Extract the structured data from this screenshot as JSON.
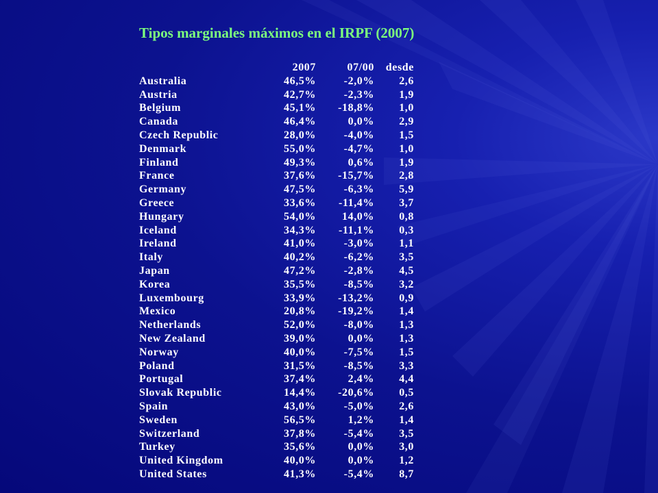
{
  "title": "Tipos marginales máximos en el IRPF (2007)",
  "colors": {
    "title": "#7dff7d",
    "text": "#ffffff",
    "background": "#0c128f"
  },
  "table": {
    "headers": [
      "",
      "2007",
      "07/00",
      "desde"
    ],
    "rows": [
      [
        "Australia",
        "46,5%",
        "-2,0%",
        "2,6"
      ],
      [
        "Austria",
        "42,7%",
        "-2,3%",
        "1,9"
      ],
      [
        "Belgium",
        "45,1%",
        "-18,8%",
        "1,0"
      ],
      [
        "Canada",
        "46,4%",
        "0,0%",
        "2,9"
      ],
      [
        "Czech Republic",
        "28,0%",
        "-4,0%",
        "1,5"
      ],
      [
        "Denmark",
        "55,0%",
        "-4,7%",
        "1,0"
      ],
      [
        "Finland",
        "49,3%",
        "0,6%",
        "1,9"
      ],
      [
        "France",
        "37,6%",
        "-15,7%",
        "2,8"
      ],
      [
        "Germany",
        "47,5%",
        "-6,3%",
        "5,9"
      ],
      [
        "Greece",
        "33,6%",
        "-11,4%",
        "3,7"
      ],
      [
        "Hungary",
        "54,0%",
        "14,0%",
        "0,8"
      ],
      [
        "Iceland",
        "34,3%",
        "-11,1%",
        "0,3"
      ],
      [
        "Ireland",
        "41,0%",
        "-3,0%",
        "1,1"
      ],
      [
        "Italy",
        "40,2%",
        "-6,2%",
        "3,5"
      ],
      [
        "Japan",
        "47,2%",
        "-2,8%",
        "4,5"
      ],
      [
        "Korea",
        "35,5%",
        "-8,5%",
        "3,2"
      ],
      [
        "Luxembourg",
        "33,9%",
        "-13,2%",
        "0,9"
      ],
      [
        "Mexico",
        "20,8%",
        "-19,2%",
        "1,4"
      ],
      [
        "Netherlands",
        "52,0%",
        "-8,0%",
        "1,3"
      ],
      [
        "New Zealand",
        "39,0%",
        "0,0%",
        "1,3"
      ],
      [
        "Norway",
        "40,0%",
        "-7,5%",
        "1,5"
      ],
      [
        "Poland",
        "31,5%",
        "-8,5%",
        "3,3"
      ],
      [
        "Portugal",
        "37,4%",
        "2,4%",
        "4,4"
      ],
      [
        "Slovak Republic",
        "14,4%",
        "-20,6%",
        "0,5"
      ],
      [
        "Spain",
        "43,0%",
        "-5,0%",
        "2,6"
      ],
      [
        "Sweden",
        "56,5%",
        "1,2%",
        "1,4"
      ],
      [
        "Switzerland",
        "37,8%",
        "-5,4%",
        "3,5"
      ],
      [
        "Turkey",
        "35,6%",
        "0,0%",
        "3,0"
      ],
      [
        "United Kingdom",
        "40,0%",
        "0,0%",
        "1,2"
      ],
      [
        "United States",
        "41,3%",
        "-5,4%",
        "8,7"
      ]
    ]
  }
}
